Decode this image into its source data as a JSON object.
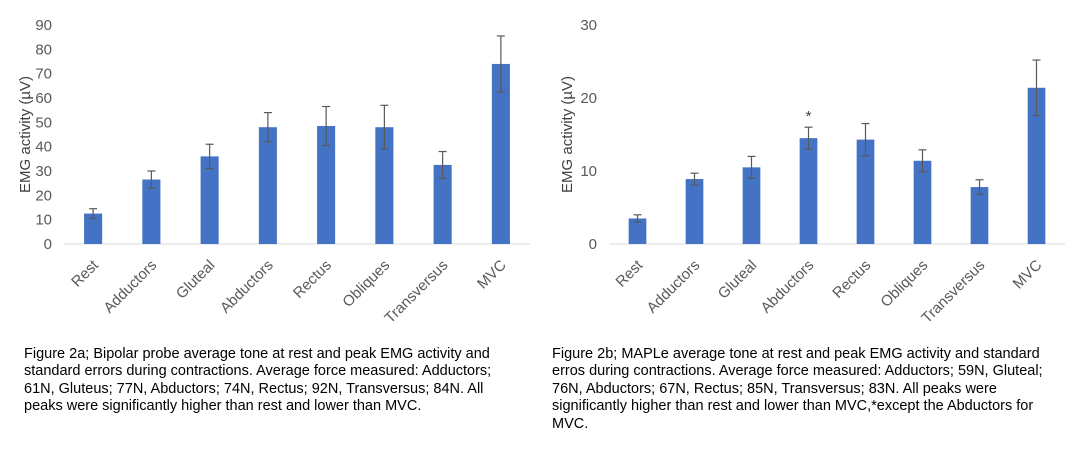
{
  "chart_data": [
    {
      "type": "bar",
      "categories": [
        "Rest",
        "Adductors",
        "Gluteal",
        "Abductors",
        "Rectus",
        "Obliques",
        "Transversus",
        "MVC"
      ],
      "values": [
        12.5,
        26.5,
        36,
        48,
        48.5,
        48,
        32.5,
        74
      ],
      "errors": [
        2,
        3.5,
        5,
        6,
        8,
        9,
        5.5,
        11.5
      ],
      "ylabel": "EMG activity (µV)",
      "ylim": [
        0,
        90
      ],
      "yticks": [
        0,
        10,
        20,
        30,
        40,
        50,
        60,
        70,
        80,
        90
      ],
      "annotations": [],
      "bar_color": "#4472c4",
      "caption": "Figure 2a; Bipolar probe average tone at rest and peak EMG activity and standard errors during contractions. Average force measured: Adductors; 61N, Gluteus; 77N, Abductors; 74N, Rectus; 92N, Transversus; 84N. All peaks were significantly higher than rest and lower than MVC."
    },
    {
      "type": "bar",
      "categories": [
        "Rest",
        "Adductors",
        "Gluteal",
        "Abductors",
        "Rectus",
        "Obliques",
        "Transversus",
        "MVC"
      ],
      "values": [
        3.5,
        8.9,
        10.5,
        14.5,
        14.3,
        11.4,
        7.8,
        21.4
      ],
      "errors": [
        0.5,
        0.8,
        1.5,
        1.5,
        2.2,
        1.5,
        1.0,
        3.8
      ],
      "ylabel": "EMG activity (µV)",
      "ylim": [
        0,
        30
      ],
      "yticks": [
        0,
        10,
        20,
        30
      ],
      "annotations": [
        {
          "category": "Abductors",
          "text": "*"
        }
      ],
      "bar_color": "#4472c4",
      "caption": "Figure 2b; MAPLe average tone at rest and peak EMG activity and standard erros during contractions. Average force measured: Adductors; 59N, Gluteal; 76N, Abductors; 67N, Rectus; 85N, Transversus; 83N. All peaks were significantly higher than rest and lower than MVC,*except the Abductors for MVC."
    }
  ]
}
